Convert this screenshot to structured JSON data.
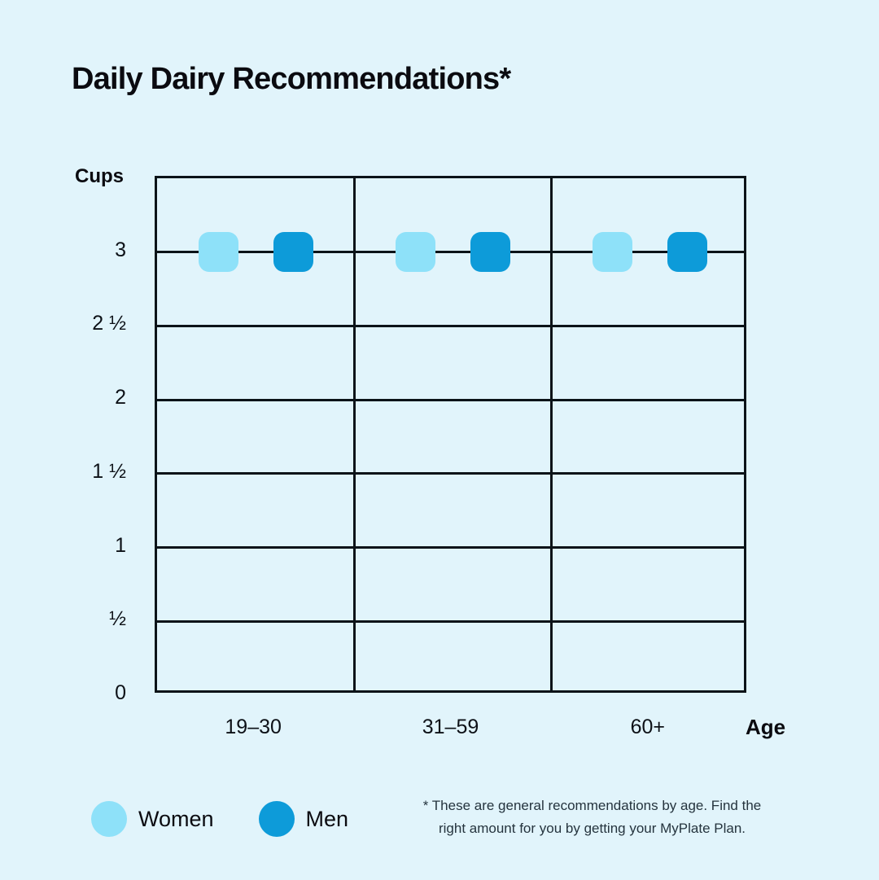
{
  "page": {
    "background": "#E1F4FB"
  },
  "chart_data": {
    "type": "scatter",
    "title": "Daily Dairy Recommendations*",
    "ylabel": "Cups",
    "xlabel": "Age",
    "categories": [
      "19–30",
      "31–59",
      "60+"
    ],
    "series": [
      {
        "name": "Women",
        "color": "#8EE1F9",
        "values": [
          3,
          3,
          3
        ]
      },
      {
        "name": "Men",
        "color": "#0D9BD9",
        "values": [
          3,
          3,
          3
        ]
      }
    ],
    "yticks": [
      {
        "label": "3",
        "value": 3
      },
      {
        "label": "2 ½",
        "value": 2.5
      },
      {
        "label": "2",
        "value": 2
      },
      {
        "label": "1 ½",
        "value": 1.5
      },
      {
        "label": "1",
        "value": 1
      },
      {
        "label": "½",
        "value": 0.5
      },
      {
        "label": "0",
        "value": 0
      }
    ],
    "ylim": [
      0,
      3.5
    ],
    "grid": true,
    "legend_position": "bottom-left",
    "marker_shape": "rounded-square"
  },
  "footnote": {
    "line1": "* These are general recommendations by age. Find the",
    "line2": "right amount for you by getting your MyPlate Plan."
  },
  "colors": {
    "background": "#E1F4FB",
    "women": "#8EE1F9",
    "men": "#0D9BD9",
    "gridline": "#0B1318",
    "text": "#0D1117"
  }
}
